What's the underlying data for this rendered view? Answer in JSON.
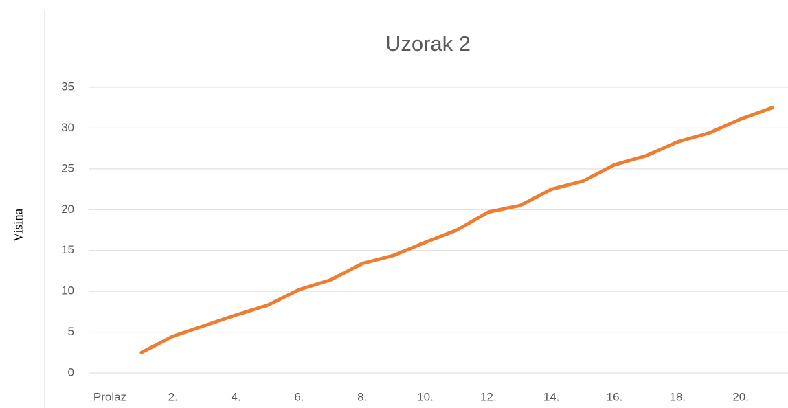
{
  "chart_data": {
    "type": "line",
    "title": "Uzorak 2",
    "y_label": "Visina",
    "categories": [
      "Prolaz",
      null,
      "2.",
      null,
      "4.",
      null,
      "6.",
      null,
      "8.",
      null,
      "10.",
      null,
      "12.",
      null,
      "14.",
      null,
      "16.",
      null,
      "18.",
      null,
      "20.",
      null
    ],
    "series": [
      {
        "name": "Uzorak 2",
        "color": "#ed7d31",
        "values": [
          null,
          2.5,
          4.5,
          5.8,
          7.1,
          8.3,
          10.2,
          11.4,
          13.4,
          14.4,
          16.0,
          17.5,
          19.7,
          20.5,
          22.5,
          23.5,
          25.5,
          26.6,
          28.3,
          29.4,
          31.1,
          32.5
        ]
      }
    ],
    "ylim": [
      0,
      35
    ],
    "yticks": [
      0,
      5,
      10,
      15,
      20,
      25,
      30,
      35
    ],
    "grid": true
  }
}
